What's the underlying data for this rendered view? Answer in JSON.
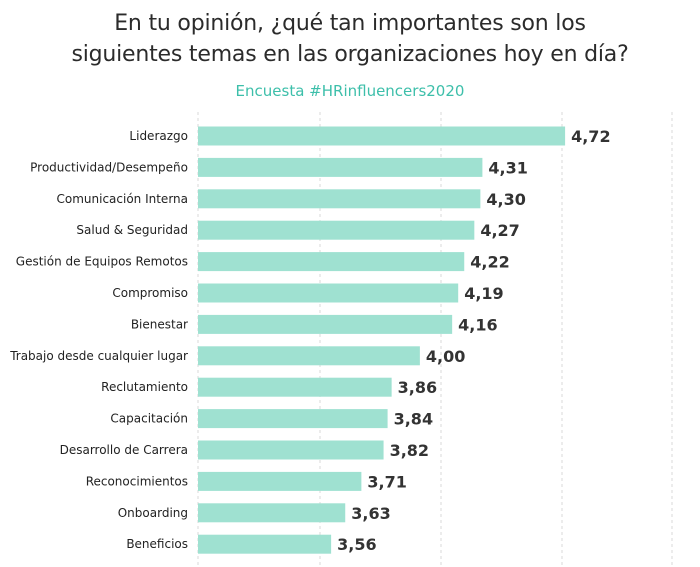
{
  "header": {
    "title_line1": "En tu opinión, ¿qué tan importantes son los",
    "title_line2": "siguientes temas en las organizaciones hoy en día?",
    "subtitle": "Encuesta #HRinfluencers2020"
  },
  "colors": {
    "bar": "#9fe1d1",
    "subtitle": "#3dbfaa",
    "grid": "#d9d9d9"
  },
  "chart_data": {
    "type": "bar",
    "orientation": "horizontal",
    "title": "En tu opinión, ¿qué tan importantes son los siguientes temas en las organizaciones hoy en día?",
    "subtitle": "Encuesta #HRinfluencers2020",
    "categories": [
      "Liderazgo",
      "Productividad/Desempeño",
      "Comunicación Interna",
      "Salud & Seguridad",
      "Gestión de Equipos Remotos",
      "Compromiso",
      "Bienestar",
      "Trabajo desde cualquier lugar",
      "Reclutamiento",
      "Capacitación",
      "Desarrollo de Carrera",
      "Reconocimientos",
      "Onboarding",
      "Beneficios"
    ],
    "values": [
      4.72,
      4.31,
      4.3,
      4.27,
      4.22,
      4.19,
      4.16,
      4.0,
      3.86,
      3.84,
      3.82,
      3.71,
      3.63,
      3.56
    ],
    "value_labels": [
      "4,72",
      "4,31",
      "4,30",
      "4,27",
      "4,22",
      "4,19",
      "4,16",
      "4,00",
      "3,86",
      "3,84",
      "3,82",
      "3,71",
      "3,63",
      "3,56"
    ],
    "xlim": [
      2.9,
      5.25
    ],
    "grid": true,
    "grid_style": "dashed vertical",
    "legend": "none"
  }
}
